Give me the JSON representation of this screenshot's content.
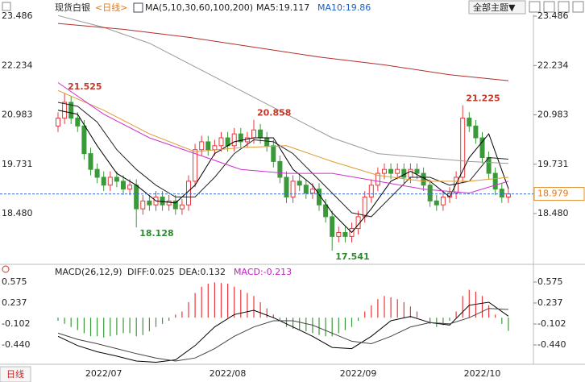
{
  "header": {
    "symbol": "现货白银",
    "period": "<日线>",
    "theme_button": "全部主题▼"
  },
  "chart_data": [
    {
      "type": "candlestick",
      "indicator_label": "MA(5,10,30,60,100,200)",
      "ma_readouts": [
        "MA5:19.117",
        "MA10:19.86"
      ],
      "categories": [
        null,
        null,
        null,
        null,
        null,
        null,
        null,
        "2022/07",
        null,
        null,
        null,
        null,
        null,
        null,
        null,
        null,
        null,
        null,
        null,
        null,
        null,
        null,
        null,
        null,
        null,
        null,
        "2022/08",
        null,
        null,
        null,
        null,
        null,
        null,
        null,
        null,
        null,
        null,
        null,
        null,
        null,
        null,
        null,
        null,
        null,
        null,
        null,
        "2022/09",
        null,
        null,
        null,
        null,
        null,
        null,
        null,
        null,
        null,
        null,
        null,
        null,
        null,
        null,
        null,
        null,
        null,
        null,
        "2022/10",
        null,
        null,
        null,
        null
      ],
      "open": [
        20.7,
        20.9,
        21.3,
        20.9,
        20.7,
        20.0,
        19.6,
        19.4,
        19.2,
        19.4,
        19.3,
        19.1,
        19.2,
        18.6,
        18.8,
        18.7,
        18.9,
        18.7,
        18.8,
        18.6,
        18.7,
        19.3,
        20.1,
        20.3,
        20.1,
        20.2,
        20.4,
        20.2,
        20.5,
        20.3,
        20.4,
        20.6,
        20.4,
        20.2,
        19.8,
        19.4,
        18.9,
        19.3,
        19.2,
        19.0,
        19.1,
        18.7,
        18.4,
        17.9,
        18.0,
        17.9,
        18.1,
        18.4,
        18.9,
        19.2,
        19.5,
        19.6,
        19.5,
        19.6,
        19.4,
        19.6,
        19.5,
        19.2,
        18.8,
        18.7,
        18.9,
        19.0,
        19.4,
        20.9,
        20.7,
        20.4,
        19.9,
        19.5,
        19.1,
        18.9
      ],
      "high": [
        21.05,
        21.525,
        21.45,
        21.05,
        20.85,
        20.15,
        19.75,
        19.55,
        19.55,
        19.55,
        19.45,
        19.35,
        19.35,
        18.95,
        18.95,
        19.05,
        19.05,
        18.95,
        18.95,
        18.85,
        19.45,
        20.25,
        20.45,
        20.45,
        20.35,
        20.55,
        20.55,
        20.65,
        20.65,
        20.55,
        20.858,
        20.75,
        20.55,
        20.35,
        19.95,
        19.55,
        19.45,
        19.45,
        19.35,
        19.25,
        19.25,
        18.85,
        18.55,
        18.15,
        18.15,
        18.25,
        18.55,
        19.05,
        19.35,
        19.65,
        19.75,
        19.75,
        19.75,
        19.75,
        19.75,
        19.75,
        19.65,
        19.35,
        18.95,
        19.05,
        19.15,
        19.55,
        21.225,
        21.05,
        20.85,
        20.55,
        20.05,
        19.65,
        19.25,
        19.13
      ],
      "low": [
        20.55,
        20.75,
        20.75,
        20.55,
        19.85,
        19.45,
        19.25,
        19.05,
        19.05,
        19.15,
        18.95,
        18.95,
        18.128,
        18.45,
        18.55,
        18.55,
        18.55,
        18.55,
        18.45,
        18.45,
        18.55,
        19.15,
        19.95,
        19.95,
        19.95,
        20.05,
        20.05,
        20.05,
        20.15,
        20.15,
        20.25,
        20.25,
        20.05,
        19.65,
        19.25,
        18.75,
        18.75,
        19.05,
        18.85,
        18.85,
        18.55,
        18.25,
        17.541,
        17.75,
        17.75,
        17.75,
        17.95,
        18.25,
        18.75,
        19.05,
        19.35,
        19.35,
        19.35,
        19.25,
        19.25,
        19.35,
        19.05,
        18.65,
        18.55,
        18.55,
        18.75,
        18.85,
        19.25,
        20.55,
        20.25,
        19.75,
        19.35,
        18.95,
        18.75,
        18.75
      ],
      "close": [
        20.9,
        21.3,
        20.9,
        20.7,
        20.0,
        19.6,
        19.4,
        19.2,
        19.4,
        19.3,
        19.1,
        19.2,
        18.6,
        18.8,
        18.7,
        18.9,
        18.7,
        18.8,
        18.6,
        18.7,
        19.3,
        20.1,
        20.3,
        20.1,
        20.2,
        20.4,
        20.2,
        20.5,
        20.3,
        20.4,
        20.6,
        20.4,
        20.2,
        19.8,
        19.4,
        18.9,
        19.3,
        19.2,
        19.0,
        19.1,
        18.7,
        18.4,
        17.9,
        18.0,
        17.9,
        18.1,
        18.4,
        18.9,
        19.2,
        19.5,
        19.6,
        19.5,
        19.6,
        19.4,
        19.6,
        19.5,
        19.2,
        18.8,
        18.7,
        18.9,
        19.0,
        19.4,
        20.9,
        20.7,
        20.4,
        19.9,
        19.5,
        19.1,
        18.9,
        18.979
      ],
      "up_color": "#e8383d",
      "down_color": "#3a9a3a",
      "lines": [
        {
          "color": "#000000",
          "x": [
            0,
            3,
            6,
            9,
            12,
            15,
            18,
            21,
            24,
            27,
            30,
            33,
            36,
            39,
            42,
            45,
            48,
            51,
            54,
            57,
            60,
            63,
            66,
            69
          ],
          "values": [
            21.1,
            21.0,
            20.2,
            19.5,
            19.2,
            18.8,
            18.75,
            19.2,
            20.0,
            20.3,
            20.4,
            20.4,
            19.6,
            19.2,
            18.5,
            18.0,
            18.6,
            19.3,
            19.55,
            19.3,
            18.9,
            19.9,
            20.5,
            19.117
          ]
        },
        {
          "color": "#222222",
          "x": [
            0,
            3,
            6,
            9,
            12,
            15,
            18,
            21,
            24,
            27,
            30,
            33,
            36,
            39,
            42,
            45,
            48,
            51,
            54,
            57,
            60,
            63,
            66,
            69
          ],
          "values": [
            21.3,
            21.2,
            20.8,
            20.1,
            19.6,
            19.2,
            18.9,
            18.9,
            19.4,
            20.0,
            20.35,
            20.3,
            20.0,
            19.5,
            19.0,
            18.5,
            18.4,
            18.9,
            19.4,
            19.4,
            19.2,
            19.3,
            19.9,
            19.86
          ]
        },
        {
          "color": "#e09a30",
          "x": [
            0,
            7,
            14,
            21,
            28,
            35,
            42,
            49,
            56,
            63,
            69
          ],
          "values": [
            21.6,
            21.1,
            20.5,
            20.05,
            20.15,
            20.2,
            19.8,
            19.45,
            19.3,
            19.3,
            19.4
          ]
        },
        {
          "color": "#999999",
          "x": [
            0,
            7,
            14,
            21,
            28,
            35,
            42,
            49,
            56,
            63,
            69
          ],
          "values": [
            23.5,
            23.2,
            22.8,
            22.2,
            21.6,
            21.0,
            20.4,
            20.0,
            19.9,
            19.8,
            19.75
          ]
        },
        {
          "color": "#d030d0",
          "x": [
            0,
            7,
            14,
            21,
            28,
            35,
            42,
            49,
            56,
            63,
            69
          ],
          "values": [
            21.8,
            21.0,
            20.4,
            20.0,
            19.6,
            19.5,
            19.5,
            19.3,
            19.1,
            19.0,
            19.3
          ]
        },
        {
          "color": "#b0302a",
          "x": [
            0,
            10,
            20,
            30,
            40,
            50,
            60,
            69
          ],
          "values": [
            23.3,
            23.15,
            22.95,
            22.7,
            22.45,
            22.25,
            22.0,
            21.85
          ]
        }
      ],
      "ylim": [
        17.397,
        23.486
      ],
      "yticks": [
        {
          "value": 18.48,
          "label": "18.480"
        },
        19.731,
        20.983,
        22.234,
        23.486
      ],
      "grid": false,
      "last_price_line": true,
      "mark_extremes": true
    },
    {
      "type": "macd",
      "legend": [
        "MACD(26,12,9)",
        "DIFF:0.025",
        "DEA:0.132",
        "MACD:-0.213"
      ],
      "values": [
        -0.05,
        -0.1,
        -0.15,
        -0.2,
        -0.25,
        -0.3,
        -0.3,
        -0.32,
        -0.3,
        -0.28,
        -0.25,
        -0.25,
        -0.3,
        -0.28,
        -0.22,
        -0.15,
        -0.1,
        -0.05,
        0.05,
        0.1,
        0.25,
        0.4,
        0.5,
        0.55,
        0.57,
        0.56,
        0.55,
        0.5,
        0.45,
        0.4,
        0.35,
        0.25,
        0.15,
        0.05,
        -0.05,
        -0.15,
        -0.18,
        -0.2,
        -0.22,
        -0.25,
        -0.28,
        -0.3,
        -0.3,
        -0.25,
        -0.2,
        -0.15,
        -0.05,
        0.1,
        0.2,
        0.3,
        0.35,
        0.33,
        0.3,
        0.25,
        0.18,
        0.1,
        0.0,
        -0.1,
        -0.15,
        -0.12,
        -0.05,
        0.1,
        0.35,
        0.45,
        0.42,
        0.35,
        0.2,
        0.05,
        -0.1,
        -0.213
      ],
      "up_color": "#e8383d",
      "down_color": "#3a9a3a",
      "lines": [
        {
          "color": "#000000",
          "x": [
            0,
            3,
            6,
            9,
            12,
            15,
            18,
            21,
            24,
            27,
            30,
            33,
            36,
            39,
            42,
            45,
            48,
            51,
            54,
            57,
            60,
            63,
            66,
            69
          ],
          "values": [
            -0.3,
            -0.45,
            -0.55,
            -0.62,
            -0.7,
            -0.72,
            -0.68,
            -0.45,
            -0.15,
            0.05,
            0.12,
            0.0,
            -0.15,
            -0.3,
            -0.48,
            -0.5,
            -0.3,
            -0.05,
            0.02,
            -0.08,
            -0.12,
            0.2,
            0.25,
            0.025
          ]
        },
        {
          "color": "#444444",
          "x": [
            0,
            3,
            6,
            9,
            12,
            15,
            18,
            21,
            24,
            27,
            30,
            33,
            36,
            39,
            42,
            45,
            48,
            51,
            54,
            57,
            60,
            63,
            66,
            69
          ],
          "values": [
            -0.25,
            -0.35,
            -0.42,
            -0.5,
            -0.58,
            -0.65,
            -0.7,
            -0.65,
            -0.5,
            -0.3,
            -0.15,
            -0.05,
            -0.05,
            -0.12,
            -0.25,
            -0.38,
            -0.42,
            -0.3,
            -0.15,
            -0.08,
            -0.1,
            0.0,
            0.15,
            0.132
          ]
        }
      ],
      "ylim": [
        -0.726,
        0.705
      ],
      "yticks": [
        {
          "value": -0.44,
          "label": "-0.440"
        },
        -0.102,
        0.237,
        0.575
      ]
    }
  ],
  "footer_tab": "日线"
}
